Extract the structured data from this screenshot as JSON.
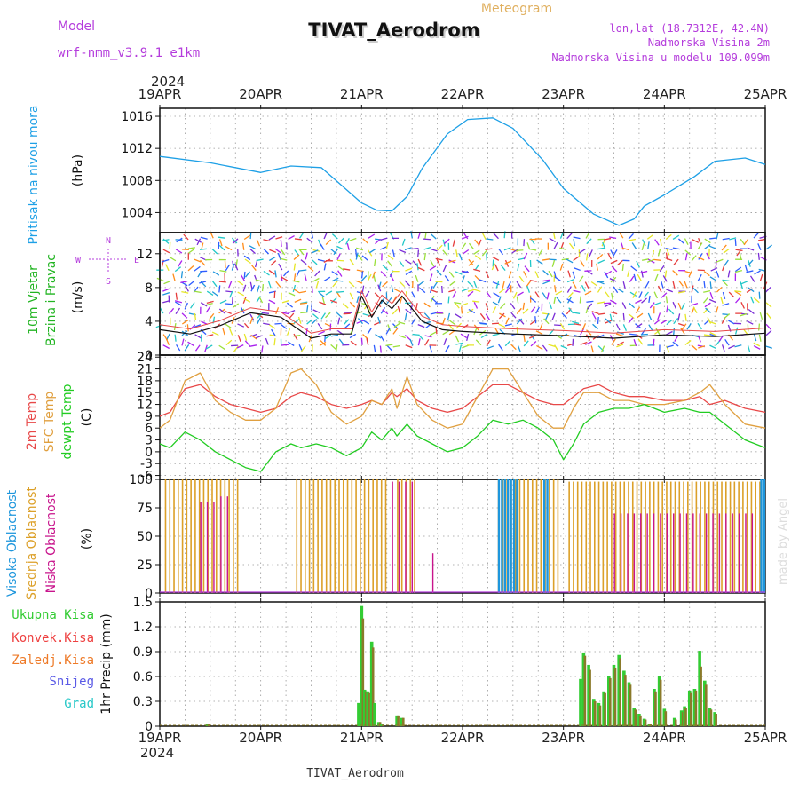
{
  "header": {
    "model_label": "Model",
    "model_name": "wrf-nmm_v3.9.1 e1km",
    "title": "TIVAT_Aerodrom",
    "meteogram_label": "Meteogram",
    "lonlat": "lon,lat (18.7312E, 42.4N)",
    "altitude": "Nadmorska Visina 2m",
    "model_altitude": "Nadmorska Visina u modelu 109.099m",
    "year": "2024",
    "footer": "TIVAT_Aerodrom",
    "signature": "made by Angel"
  },
  "colors": {
    "pressure": "#1ea0e6",
    "wind_label": "#22b422",
    "temp2m": "#e84848",
    "sfc": "#e0a040",
    "dewpt": "#22cc22",
    "high_cloud": "#1e96dc",
    "mid_cloud": "#dca028",
    "low_cloud": "#c8148c",
    "ukupna": "#33cc33",
    "konvek": "#ee4040",
    "zaledj": "#ee7a28",
    "snijeg": "#5a5ae6",
    "grad": "#28c8c8",
    "purple": "#b43cdc"
  },
  "chart_data": [
    {
      "type": "line",
      "ylabel": "(hPa)",
      "side_label": "Pritisak na nivou mora",
      "ylim": [
        1001.5,
        1017
      ],
      "yticks": [
        1004,
        1008,
        1012,
        1016
      ],
      "xticks": [
        "19APR",
        "20APR",
        "21APR",
        "22APR",
        "23APR",
        "24APR",
        "25APR"
      ],
      "x_days": [
        0,
        0.5,
        1,
        1.3,
        1.6,
        2.0,
        2.15,
        2.3,
        2.45,
        2.6,
        2.85,
        3.05,
        3.3,
        3.5,
        3.8,
        4.0,
        4.3,
        4.55,
        4.7,
        4.8,
        5.0,
        5.3,
        5.5,
        5.8,
        6.0
      ],
      "series": [
        {
          "name": "Pritisak na nivou mora",
          "values": [
            1011,
            1010.2,
            1009,
            1009.8,
            1009.6,
            1005.2,
            1004.3,
            1004.2,
            1006,
            1009.5,
            1013.8,
            1015.6,
            1015.8,
            1014.5,
            1010.5,
            1007,
            1003.8,
            1002.4,
            1003.2,
            1004.8,
            1006.2,
            1008.5,
            1010.4,
            1010.8,
            1010
          ]
        }
      ]
    },
    {
      "type": "line",
      "ylabel": "(m/s)",
      "side_label": [
        "10m Vjetar",
        "Brzina i Pravac"
      ],
      "compass": {
        "n": "N",
        "s": "S",
        "w": "W",
        "e": "E"
      },
      "ylim": [
        0,
        14.5
      ],
      "yticks": [
        0,
        4,
        8,
        12
      ],
      "x_days": [
        0,
        0.3,
        0.6,
        0.9,
        1.2,
        1.5,
        1.7,
        1.9,
        2.0,
        2.1,
        2.2,
        2.3,
        2.4,
        2.5,
        2.6,
        2.8,
        3.0,
        3.5,
        4.0,
        4.5,
        5.0,
        5.5,
        6.0
      ],
      "series": [
        {
          "name": "Brzina",
          "values": [
            3,
            2.5,
            3.5,
            5,
            4.5,
            2,
            2.5,
            2.5,
            7,
            4.5,
            6.5,
            5.5,
            7,
            5.5,
            4,
            3,
            2.8,
            2.5,
            2.3,
            2,
            2.4,
            2.2,
            2.6
          ]
        }
      ]
    },
    {
      "type": "line",
      "ylabel": "(C)",
      "side_label": [
        "2m Temp",
        "SFC Temp",
        "dewpt Temp"
      ],
      "ylim": [
        -7,
        24.5
      ],
      "yticks": [
        -6,
        -3,
        0,
        3,
        6,
        9,
        12,
        15,
        18,
        21,
        24
      ],
      "x_days": [
        0,
        0.1,
        0.25,
        0.4,
        0.55,
        0.7,
        0.85,
        1.0,
        1.15,
        1.3,
        1.4,
        1.55,
        1.7,
        1.85,
        2.0,
        2.1,
        2.2,
        2.3,
        2.35,
        2.45,
        2.55,
        2.7,
        2.85,
        3.0,
        3.15,
        3.3,
        3.45,
        3.6,
        3.75,
        3.9,
        4.0,
        4.1,
        4.2,
        4.35,
        4.5,
        4.65,
        4.8,
        5.0,
        5.2,
        5.35,
        5.45,
        5.6,
        5.8,
        6.0
      ],
      "series": [
        {
          "name": "2m Temp",
          "values": [
            9,
            10,
            16,
            17,
            14,
            12,
            11,
            10,
            11,
            14,
            15,
            14,
            12,
            11,
            12,
            13,
            12,
            15,
            14,
            16,
            13,
            11,
            10,
            11,
            14,
            17,
            17,
            15,
            13,
            12,
            12,
            14,
            16,
            17,
            15,
            14,
            14,
            13,
            13,
            14,
            12,
            13,
            11,
            10
          ]
        },
        {
          "name": "SFC Temp",
          "values": [
            6,
            8,
            18,
            20,
            13,
            10,
            8,
            8,
            11,
            20,
            21,
            17,
            10,
            7,
            9,
            13,
            12,
            16,
            11,
            19,
            12,
            8,
            6,
            7,
            14,
            21,
            21,
            15,
            9,
            6,
            6,
            11,
            15,
            15,
            13,
            13,
            12,
            12,
            13,
            15,
            17,
            12,
            7,
            6
          ]
        },
        {
          "name": "dewpt Temp",
          "values": [
            2,
            1,
            5,
            3,
            0,
            -2,
            -4,
            -5,
            0,
            2,
            1,
            2,
            1,
            -1,
            1,
            5,
            3,
            6,
            4,
            7,
            4,
            2,
            0,
            1,
            4,
            8,
            7,
            8,
            6,
            3,
            -2,
            2,
            7,
            10,
            11,
            11,
            12,
            10,
            11,
            10,
            10,
            7,
            3,
            1
          ]
        }
      ]
    },
    {
      "type": "bar",
      "ylabel": "(%)",
      "side_label": [
        "Visoka Oblacnost",
        "Srednja Oblacnost",
        "Niska Oblacnost"
      ],
      "ylim": [
        0,
        100
      ],
      "yticks": [
        0,
        25,
        50,
        75,
        100
      ],
      "mid_segments": [
        [
          0.05,
          0.8,
          100
        ],
        [
          1.35,
          2.25,
          100
        ],
        [
          2.35,
          2.55,
          100
        ],
        [
          3.35,
          3.95,
          100
        ],
        [
          4.05,
          5.95,
          98
        ]
      ],
      "high_segments": [
        [
          3.35,
          3.55,
          100
        ],
        [
          3.8,
          3.85,
          100
        ],
        [
          5.95,
          6.0,
          100
        ]
      ],
      "low_segments": [
        [
          0.4,
          0.55,
          80
        ],
        [
          0.6,
          0.7,
          85
        ],
        [
          2.3,
          2.55,
          98
        ],
        [
          2.7,
          2.75,
          35
        ],
        [
          4.5,
          5.9,
          70
        ]
      ],
      "series": [
        {
          "name": "Visoka Oblacnost",
          "values": []
        },
        {
          "name": "Srednja Oblacnost",
          "values": []
        },
        {
          "name": "Niska Oblacnost",
          "values": []
        }
      ]
    },
    {
      "type": "bar",
      "ylabel": "1hr Precip (mm)",
      "legend": [
        "Ukupna Kisa",
        "Konvek.Kisa",
        "Zaledj.Kisa",
        "Snijeg",
        "Grad"
      ],
      "ylim": [
        0,
        1.5
      ],
      "yticks": [
        0,
        0.3,
        0.6,
        0.9,
        1.2,
        1.5
      ],
      "x_days": [
        0.47,
        1.97,
        2.0,
        2.03,
        2.06,
        2.1,
        2.13,
        2.17,
        2.2,
        2.35,
        2.4,
        4.17,
        4.2,
        4.25,
        4.3,
        4.35,
        4.4,
        4.45,
        4.5,
        4.55,
        4.6,
        4.65,
        4.7,
        4.75,
        4.8,
        4.85,
        4.9,
        4.95,
        5.0,
        5.1,
        5.17,
        5.2,
        5.25,
        5.3,
        5.35,
        5.4,
        5.45,
        5.5
      ],
      "series": [
        {
          "name": "Ukupna Kisa",
          "values": [
            0.03,
            0.28,
            1.45,
            0.44,
            0.42,
            1.02,
            0.28,
            0.05,
            0.02,
            0.13,
            0.1,
            0.57,
            0.89,
            0.74,
            0.33,
            0.28,
            0.42,
            0.61,
            0.74,
            0.86,
            0.67,
            0.53,
            0.22,
            0.15,
            0.09,
            0.03,
            0.45,
            0.61,
            0.21,
            0.1,
            0.19,
            0.24,
            0.43,
            0.45,
            0.91,
            0.55,
            0.22,
            0.17
          ]
        },
        {
          "name": "Konvek.Kisa",
          "values": [
            0.03,
            0.0,
            1.3,
            0.42,
            0.4,
            0.95,
            0.0,
            0.05,
            0.02,
            0.13,
            0.1,
            0.0,
            0.85,
            0.68,
            0.3,
            0.25,
            0.4,
            0.58,
            0.7,
            0.82,
            0.62,
            0.5,
            0.2,
            0.13,
            0.08,
            0.03,
            0.42,
            0.56,
            0.18,
            0.08,
            0.17,
            0.22,
            0.4,
            0.43,
            0.72,
            0.5,
            0.2,
            0.15
          ]
        },
        {
          "name": "Zaledj.Kisa",
          "values": []
        },
        {
          "name": "Snijeg",
          "values": []
        },
        {
          "name": "Grad",
          "values": []
        }
      ]
    }
  ]
}
